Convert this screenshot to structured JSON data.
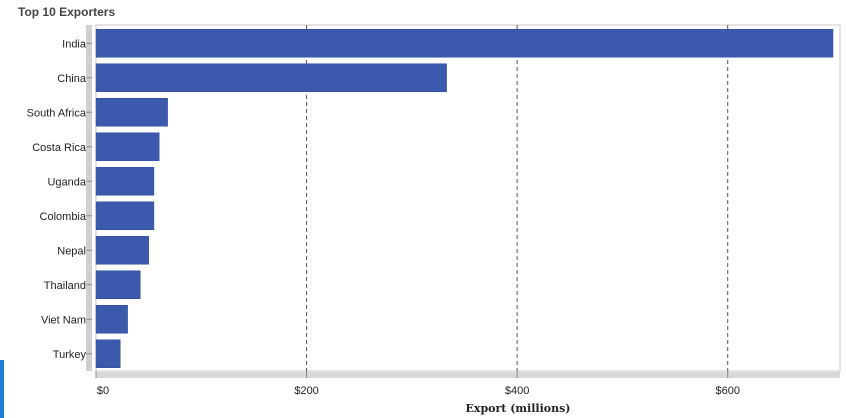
{
  "chart_data": {
    "type": "bar",
    "orientation": "horizontal",
    "title": "Top 10 Exporters",
    "xlabel": "Export (millions)",
    "ylabel": "",
    "categories": [
      "India",
      "China",
      "South Africa",
      "Costa Rica",
      "Uganda",
      "Colombia",
      "Nepal",
      "Thailand",
      "Viet Nam",
      "Turkey"
    ],
    "values": [
      700,
      333,
      68,
      60,
      55,
      55,
      50,
      42,
      30,
      23
    ],
    "xlim": [
      0,
      700
    ],
    "xticks": [
      0,
      200,
      400,
      600
    ],
    "xtick_labels": [
      "$0",
      "$200",
      "$400",
      "$600"
    ],
    "grid": "vertical dashed",
    "legend": "none",
    "bar_color": "#3c5aad"
  }
}
